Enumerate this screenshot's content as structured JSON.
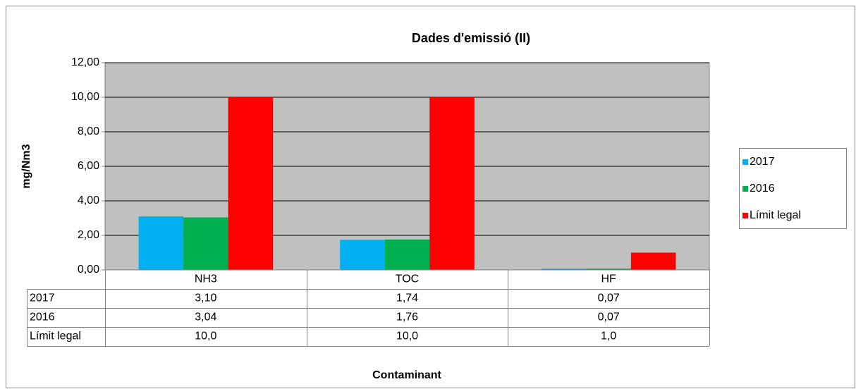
{
  "chart_data": {
    "type": "bar",
    "title": "Dades d'emissió (II)",
    "y_label": "mg/Nm3",
    "x_label": "Contaminant",
    "categories": [
      "NH3",
      "TOC",
      "HF"
    ],
    "series": [
      {
        "name": "2017",
        "color": "#00b0f0",
        "values": [
          3.1,
          1.74,
          0.07
        ],
        "value_labels": [
          "3,10",
          "1,74",
          "0,07"
        ]
      },
      {
        "name": "2016",
        "color": "#00b050",
        "values": [
          3.04,
          1.76,
          0.07
        ],
        "value_labels": [
          "3,04",
          "1,76",
          "0,07"
        ]
      },
      {
        "name": "Límit legal",
        "color": "#ff0000",
        "values": [
          10.0,
          10.0,
          1.0
        ],
        "value_labels": [
          "10,0",
          "10,0",
          "1,0"
        ]
      }
    ],
    "ylim": [
      0,
      12
    ],
    "yticks": [
      {
        "value": 0,
        "label": "0,00"
      },
      {
        "value": 2,
        "label": "2,00"
      },
      {
        "value": 4,
        "label": "4,00"
      },
      {
        "value": 6,
        "label": "6,00"
      },
      {
        "value": 8,
        "label": "8,00"
      },
      {
        "value": 10,
        "label": "10,00"
      },
      {
        "value": 12,
        "label": "12,00"
      }
    ],
    "grid": true,
    "legend": "right",
    "plot_background": "#c0c0c0"
  }
}
